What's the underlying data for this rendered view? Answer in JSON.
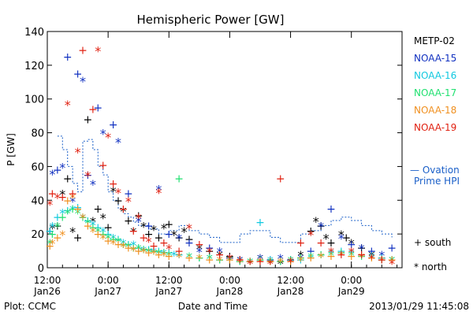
{
  "chart_data": {
    "type": "scatter",
    "title": "Hemispheric Power [GW]",
    "ylabel": "P [GW]",
    "xlabel": "Date and Time",
    "ylim": [
      0,
      140
    ],
    "yticks": [
      0,
      20,
      40,
      60,
      80,
      100,
      120,
      140
    ],
    "xticks": [
      {
        "t": 12,
        "line1": "12:00",
        "line2": "Jan26"
      },
      {
        "t": 24,
        "line1": "0:00",
        "line2": "Jan27"
      },
      {
        "t": 36,
        "line1": "12:00",
        "line2": "Jan27"
      },
      {
        "t": 48,
        "line1": "0:00",
        "line2": "Jan28"
      },
      {
        "t": 60,
        "line1": "12:00",
        "line2": "Jan28"
      },
      {
        "t": 72,
        "line1": "0:00",
        "line2": "Jan29"
      }
    ],
    "xlim": [
      12,
      82
    ],
    "series": [
      {
        "name": "METP-02",
        "color": "#000000",
        "points": [
          [
            12.5,
            22
          ],
          [
            13,
            24
          ],
          [
            14,
            25
          ],
          [
            15,
            44
          ],
          [
            16,
            53
          ],
          [
            17,
            22
          ],
          [
            18,
            18
          ],
          [
            19,
            30
          ],
          [
            20,
            88
          ],
          [
            21,
            28
          ],
          [
            22,
            35
          ],
          [
            23,
            30
          ],
          [
            24,
            24
          ],
          [
            25,
            46
          ],
          [
            26,
            40
          ],
          [
            27,
            34
          ],
          [
            28,
            28
          ],
          [
            29,
            22
          ],
          [
            30,
            31
          ],
          [
            31,
            25
          ],
          [
            32,
            20
          ],
          [
            33,
            23
          ],
          [
            34,
            18
          ],
          [
            35,
            24
          ],
          [
            36,
            26
          ],
          [
            37,
            20
          ],
          [
            38,
            18
          ],
          [
            39,
            22
          ],
          [
            40,
            17
          ],
          [
            42,
            12
          ],
          [
            44,
            10
          ],
          [
            46,
            8
          ],
          [
            48,
            7
          ],
          [
            50,
            5
          ],
          [
            52,
            4
          ],
          [
            54,
            6
          ],
          [
            56,
            4
          ],
          [
            58,
            3
          ],
          [
            60,
            5
          ],
          [
            62,
            8
          ],
          [
            64,
            22
          ],
          [
            65,
            28
          ],
          [
            66,
            25
          ],
          [
            67,
            18
          ],
          [
            68,
            15
          ],
          [
            70,
            20
          ],
          [
            71,
            18
          ],
          [
            72,
            15
          ],
          [
            74,
            12
          ],
          [
            76,
            8
          ],
          [
            78,
            6
          ],
          [
            80,
            5
          ]
        ]
      },
      {
        "name": "NOAA-15",
        "color": "#1030c0",
        "points": [
          [
            13,
            56
          ],
          [
            14,
            58
          ],
          [
            15,
            60
          ],
          [
            16,
            125
          ],
          [
            17,
            40
          ],
          [
            18,
            115
          ],
          [
            19,
            111
          ],
          [
            20,
            55
          ],
          [
            21,
            50
          ],
          [
            22,
            95
          ],
          [
            23,
            80
          ],
          [
            25,
            85
          ],
          [
            26,
            75
          ],
          [
            28,
            44
          ],
          [
            30,
            28
          ],
          [
            32,
            25
          ],
          [
            34,
            47
          ],
          [
            36,
            20
          ],
          [
            38,
            18
          ],
          [
            40,
            15
          ],
          [
            42,
            10
          ],
          [
            44,
            12
          ],
          [
            46,
            10
          ],
          [
            48,
            6
          ],
          [
            50,
            5
          ],
          [
            52,
            4
          ],
          [
            54,
            6
          ],
          [
            56,
            5
          ],
          [
            58,
            6
          ],
          [
            60,
            5
          ],
          [
            62,
            6
          ],
          [
            64,
            10
          ],
          [
            66,
            25
          ],
          [
            68,
            35
          ],
          [
            70,
            18
          ],
          [
            72,
            14
          ],
          [
            74,
            12
          ],
          [
            76,
            10
          ],
          [
            78,
            8
          ],
          [
            80,
            12
          ]
        ]
      },
      {
        "name": "NOAA-16",
        "color": "#10c8e0",
        "points": [
          [
            12.5,
            22
          ],
          [
            13,
            25
          ],
          [
            14,
            30
          ],
          [
            15,
            33
          ],
          [
            16,
            34
          ],
          [
            17,
            35
          ],
          [
            18,
            36
          ],
          [
            19,
            30
          ],
          [
            20,
            28
          ],
          [
            21,
            26
          ],
          [
            22,
            24
          ],
          [
            23,
            22
          ],
          [
            24,
            20
          ],
          [
            25,
            18
          ],
          [
            26,
            17
          ],
          [
            27,
            15
          ],
          [
            28,
            14
          ],
          [
            29,
            14
          ],
          [
            30,
            12
          ],
          [
            31,
            11
          ],
          [
            32,
            11
          ],
          [
            33,
            10
          ],
          [
            34,
            10
          ],
          [
            35,
            9
          ],
          [
            36,
            9
          ],
          [
            37,
            8
          ],
          [
            38,
            8
          ],
          [
            40,
            7
          ],
          [
            42,
            6
          ],
          [
            44,
            6
          ],
          [
            46,
            5
          ],
          [
            48,
            5
          ],
          [
            50,
            4
          ],
          [
            52,
            4
          ],
          [
            54,
            27
          ],
          [
            56,
            5
          ],
          [
            58,
            4
          ],
          [
            60,
            4
          ],
          [
            62,
            5
          ],
          [
            64,
            6
          ],
          [
            66,
            8
          ],
          [
            68,
            9
          ],
          [
            70,
            10
          ],
          [
            72,
            9
          ],
          [
            74,
            8
          ],
          [
            76,
            7
          ],
          [
            78,
            6
          ],
          [
            80,
            5
          ]
        ]
      },
      {
        "name": "NOAA-17",
        "color": "#20e070",
        "points": [
          [
            12.5,
            15
          ],
          [
            13,
            20
          ],
          [
            14,
            25
          ],
          [
            15,
            30
          ],
          [
            16,
            33
          ],
          [
            17,
            35
          ],
          [
            18,
            33
          ],
          [
            19,
            30
          ],
          [
            20,
            27
          ],
          [
            21,
            24
          ],
          [
            22,
            22
          ],
          [
            23,
            20
          ],
          [
            24,
            18
          ],
          [
            25,
            17
          ],
          [
            26,
            16
          ],
          [
            27,
            14
          ],
          [
            28,
            13
          ],
          [
            29,
            12
          ],
          [
            30,
            12
          ],
          [
            31,
            11
          ],
          [
            32,
            10
          ],
          [
            33,
            10
          ],
          [
            34,
            9
          ],
          [
            35,
            9
          ],
          [
            36,
            8
          ],
          [
            38,
            53
          ],
          [
            40,
            7
          ],
          [
            42,
            6
          ],
          [
            44,
            6
          ],
          [
            46,
            5
          ],
          [
            48,
            5
          ],
          [
            50,
            4
          ],
          [
            52,
            4
          ],
          [
            54,
            5
          ],
          [
            56,
            4
          ],
          [
            58,
            4
          ],
          [
            60,
            5
          ],
          [
            62,
            6
          ],
          [
            64,
            7
          ],
          [
            66,
            8
          ],
          [
            68,
            8
          ],
          [
            70,
            9
          ],
          [
            72,
            8
          ],
          [
            74,
            7
          ],
          [
            76,
            6
          ],
          [
            78,
            5
          ],
          [
            80,
            5
          ]
        ]
      },
      {
        "name": "NOAA-18",
        "color": "#f09020",
        "points": [
          [
            12.5,
            13
          ],
          [
            13,
            15
          ],
          [
            14,
            18
          ],
          [
            15,
            20
          ],
          [
            16,
            40
          ],
          [
            17,
            42
          ],
          [
            18,
            35
          ],
          [
            19,
            30
          ],
          [
            20,
            25
          ],
          [
            21,
            22
          ],
          [
            22,
            20
          ],
          [
            23,
            18
          ],
          [
            24,
            16
          ],
          [
            25,
            15
          ],
          [
            26,
            14
          ],
          [
            27,
            13
          ],
          [
            28,
            12
          ],
          [
            29,
            11
          ],
          [
            30,
            10
          ],
          [
            31,
            10
          ],
          [
            32,
            9
          ],
          [
            33,
            9
          ],
          [
            34,
            8
          ],
          [
            35,
            8
          ],
          [
            36,
            7
          ],
          [
            38,
            7
          ],
          [
            40,
            6
          ],
          [
            42,
            6
          ],
          [
            44,
            5
          ],
          [
            46,
            5
          ],
          [
            48,
            5
          ],
          [
            50,
            4
          ],
          [
            52,
            4
          ],
          [
            54,
            4
          ],
          [
            56,
            4
          ],
          [
            58,
            4
          ],
          [
            60,
            4
          ],
          [
            62,
            5
          ],
          [
            64,
            6
          ],
          [
            66,
            7
          ],
          [
            68,
            7
          ],
          [
            70,
            8
          ],
          [
            72,
            7
          ],
          [
            74,
            7
          ],
          [
            76,
            6
          ],
          [
            78,
            5
          ],
          [
            80,
            5
          ]
        ]
      },
      {
        "name": "NOAA-19",
        "color": "#e02010",
        "points": [
          [
            12.5,
            38
          ],
          [
            13,
            44
          ],
          [
            14,
            42
          ],
          [
            15,
            42
          ],
          [
            16,
            97
          ],
          [
            17,
            44
          ],
          [
            18,
            69
          ],
          [
            19,
            129
          ],
          [
            20,
            55
          ],
          [
            21,
            94
          ],
          [
            22,
            129
          ],
          [
            23,
            61
          ],
          [
            24,
            78
          ],
          [
            25,
            50
          ],
          [
            26,
            45
          ],
          [
            27,
            35
          ],
          [
            28,
            40
          ],
          [
            29,
            22
          ],
          [
            30,
            30
          ],
          [
            31,
            18
          ],
          [
            32,
            16
          ],
          [
            33,
            13
          ],
          [
            34,
            45
          ],
          [
            35,
            15
          ],
          [
            36,
            12
          ],
          [
            38,
            10
          ],
          [
            40,
            24
          ],
          [
            42,
            14
          ],
          [
            44,
            10
          ],
          [
            46,
            8
          ],
          [
            48,
            6
          ],
          [
            50,
            5
          ],
          [
            52,
            3
          ],
          [
            54,
            4
          ],
          [
            56,
            3
          ],
          [
            58,
            53
          ],
          [
            60,
            4
          ],
          [
            62,
            15
          ],
          [
            64,
            20
          ],
          [
            66,
            15
          ],
          [
            68,
            10
          ],
          [
            70,
            8
          ],
          [
            72,
            10
          ],
          [
            74,
            8
          ],
          [
            76,
            6
          ],
          [
            78,
            5
          ],
          [
            80,
            3
          ]
        ]
      }
    ],
    "ovation_prime_hpi": [
      [
        14,
        78
      ],
      [
        15,
        70
      ],
      [
        16,
        60
      ],
      [
        17,
        50
      ],
      [
        18,
        45
      ],
      [
        19,
        75
      ],
      [
        20,
        76
      ],
      [
        21,
        70
      ],
      [
        22,
        60
      ],
      [
        23,
        55
      ],
      [
        24,
        45
      ],
      [
        25,
        40
      ],
      [
        26,
        35
      ],
      [
        27,
        32
      ],
      [
        28,
        30
      ],
      [
        29,
        27
      ],
      [
        30,
        25
      ],
      [
        32,
        23
      ],
      [
        34,
        20
      ],
      [
        36,
        22
      ],
      [
        38,
        25
      ],
      [
        40,
        22
      ],
      [
        42,
        20
      ],
      [
        44,
        18
      ],
      [
        46,
        15
      ],
      [
        48,
        15
      ],
      [
        50,
        20
      ],
      [
        52,
        22
      ],
      [
        54,
        22
      ],
      [
        56,
        18
      ],
      [
        58,
        15
      ],
      [
        60,
        15
      ],
      [
        62,
        20
      ],
      [
        64,
        22
      ],
      [
        66,
        25
      ],
      [
        68,
        28
      ],
      [
        70,
        30
      ],
      [
        72,
        28
      ],
      [
        74,
        25
      ],
      [
        76,
        22
      ],
      [
        78,
        20
      ],
      [
        80,
        18
      ]
    ],
    "legend": {
      "entries": [
        "METP-02",
        "NOAA-15",
        "NOAA-16",
        "NOAA-17",
        "NOAA-18",
        "NOAA-19"
      ],
      "ovation_label_1": "— Ovation",
      "ovation_label_2": "Prime HPI",
      "south": "+ south",
      "north": "* north",
      "placement": "right"
    },
    "footer_left": "Plot: CCMC",
    "footer_right": "2013/01/29 11:45:08"
  }
}
